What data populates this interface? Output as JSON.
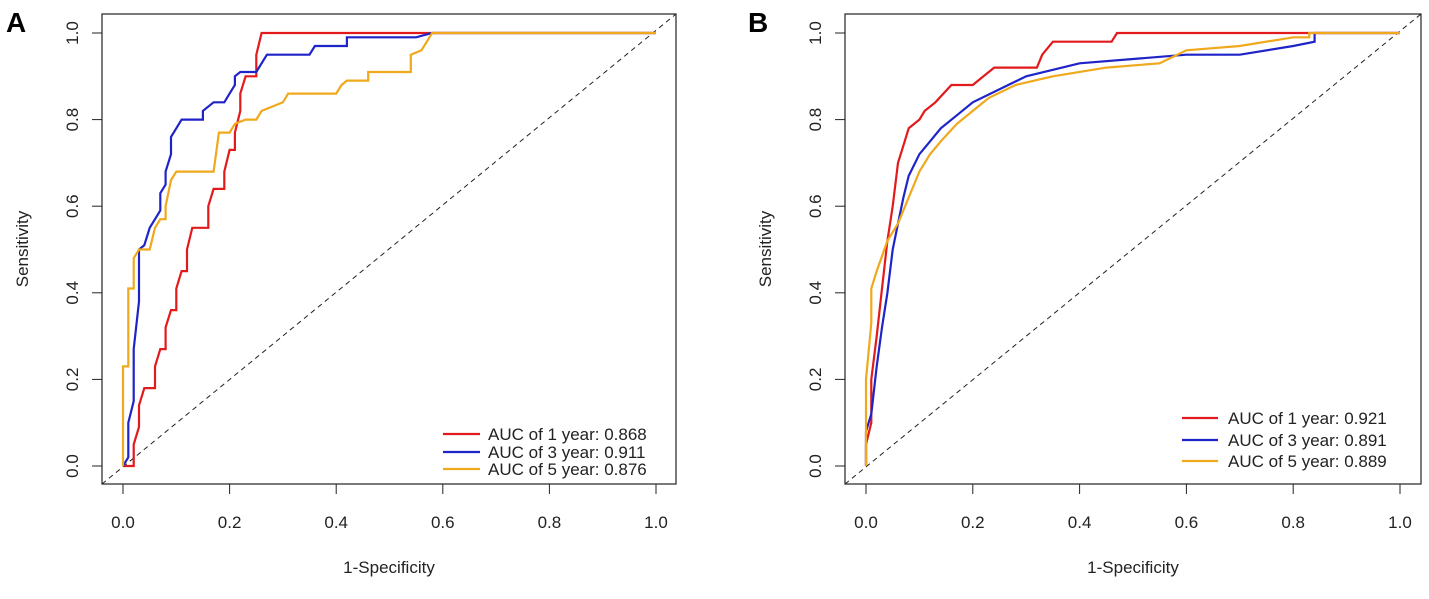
{
  "chart_data": [
    {
      "panel_label": "A",
      "type": "line",
      "xlabel": "1-Specificity",
      "ylabel": "Sensitivity",
      "xlim": [
        0,
        1
      ],
      "ylim": [
        0,
        1
      ],
      "xticks": [
        "0.0",
        "0.2",
        "0.4",
        "0.6",
        "0.8",
        "1.0"
      ],
      "yticks": [
        "0.0",
        "0.2",
        "0.4",
        "0.6",
        "0.8",
        "1.0"
      ],
      "reference_line": [
        [
          0,
          0
        ],
        [
          1,
          1
        ]
      ],
      "legend_position": "bottom-right",
      "series": [
        {
          "name": "AUC of 1 year: 0.868",
          "color": "#e31a1c",
          "points": [
            [
              0,
              0
            ],
            [
              0.02,
              0
            ],
            [
              0.02,
              0.05
            ],
            [
              0.03,
              0.09
            ],
            [
              0.03,
              0.14
            ],
            [
              0.04,
              0.18
            ],
            [
              0.06,
              0.18
            ],
            [
              0.06,
              0.23
            ],
            [
              0.07,
              0.27
            ],
            [
              0.08,
              0.27
            ],
            [
              0.08,
              0.32
            ],
            [
              0.09,
              0.36
            ],
            [
              0.1,
              0.36
            ],
            [
              0.1,
              0.41
            ],
            [
              0.11,
              0.45
            ],
            [
              0.12,
              0.45
            ],
            [
              0.12,
              0.5
            ],
            [
              0.13,
              0.55
            ],
            [
              0.15,
              0.55
            ],
            [
              0.16,
              0.55
            ],
            [
              0.16,
              0.6
            ],
            [
              0.17,
              0.64
            ],
            [
              0.19,
              0.64
            ],
            [
              0.19,
              0.68
            ],
            [
              0.2,
              0.73
            ],
            [
              0.21,
              0.73
            ],
            [
              0.21,
              0.77
            ],
            [
              0.22,
              0.82
            ],
            [
              0.22,
              0.86
            ],
            [
              0.23,
              0.9
            ],
            [
              0.25,
              0.9
            ],
            [
              0.25,
              0.95
            ],
            [
              0.26,
              1
            ],
            [
              0.42,
              1
            ],
            [
              0.55,
              1
            ],
            [
              0.58,
              1
            ],
            [
              1,
              1
            ]
          ]
        },
        {
          "name": "AUC of 3 year: 0.911",
          "color": "#1f24c8",
          "points": [
            [
              0,
              0
            ],
            [
              0.01,
              0.02
            ],
            [
              0.01,
              0.1
            ],
            [
              0.02,
              0.15
            ],
            [
              0.02,
              0.2
            ],
            [
              0.02,
              0.27
            ],
            [
              0.03,
              0.38
            ],
            [
              0.03,
              0.45
            ],
            [
              0.03,
              0.5
            ],
            [
              0.04,
              0.51
            ],
            [
              0.05,
              0.55
            ],
            [
              0.06,
              0.57
            ],
            [
              0.07,
              0.59
            ],
            [
              0.07,
              0.63
            ],
            [
              0.08,
              0.65
            ],
            [
              0.08,
              0.68
            ],
            [
              0.09,
              0.72
            ],
            [
              0.09,
              0.76
            ],
            [
              0.1,
              0.78
            ],
            [
              0.11,
              0.8
            ],
            [
              0.15,
              0.8
            ],
            [
              0.15,
              0.82
            ],
            [
              0.17,
              0.84
            ],
            [
              0.19,
              0.84
            ],
            [
              0.2,
              0.86
            ],
            [
              0.21,
              0.88
            ],
            [
              0.21,
              0.9
            ],
            [
              0.22,
              0.91
            ],
            [
              0.25,
              0.91
            ],
            [
              0.26,
              0.93
            ],
            [
              0.27,
              0.95
            ],
            [
              0.35,
              0.95
            ],
            [
              0.36,
              0.97
            ],
            [
              0.42,
              0.97
            ],
            [
              0.42,
              0.99
            ],
            [
              0.52,
              0.99
            ],
            [
              0.55,
              0.99
            ],
            [
              0.58,
              1
            ],
            [
              1,
              1
            ]
          ]
        },
        {
          "name": "AUC of 5 year: 0.876",
          "color": "#f0a81c",
          "points": [
            [
              0,
              0
            ],
            [
              0,
              0.23
            ],
            [
              0.01,
              0.23
            ],
            [
              0.01,
              0.41
            ],
            [
              0.02,
              0.41
            ],
            [
              0.02,
              0.48
            ],
            [
              0.03,
              0.5
            ],
            [
              0.05,
              0.5
            ],
            [
              0.06,
              0.55
            ],
            [
              0.07,
              0.57
            ],
            [
              0.08,
              0.57
            ],
            [
              0.08,
              0.6
            ],
            [
              0.09,
              0.66
            ],
            [
              0.1,
              0.68
            ],
            [
              0.17,
              0.68
            ],
            [
              0.18,
              0.77
            ],
            [
              0.2,
              0.77
            ],
            [
              0.21,
              0.79
            ],
            [
              0.23,
              0.8
            ],
            [
              0.25,
              0.8
            ],
            [
              0.26,
              0.82
            ],
            [
              0.28,
              0.83
            ],
            [
              0.3,
              0.84
            ],
            [
              0.31,
              0.86
            ],
            [
              0.4,
              0.86
            ],
            [
              0.41,
              0.88
            ],
            [
              0.42,
              0.89
            ],
            [
              0.46,
              0.89
            ],
            [
              0.46,
              0.91
            ],
            [
              0.54,
              0.91
            ],
            [
              0.54,
              0.95
            ],
            [
              0.56,
              0.96
            ],
            [
              0.57,
              0.98
            ],
            [
              0.58,
              1
            ],
            [
              1,
              1
            ]
          ]
        }
      ]
    },
    {
      "panel_label": "B",
      "type": "line",
      "xlabel": "1-Specificity",
      "ylabel": "Sensitivity",
      "xlim": [
        0,
        1
      ],
      "ylim": [
        0,
        1
      ],
      "xticks": [
        "0.0",
        "0.2",
        "0.4",
        "0.6",
        "0.8",
        "1.0"
      ],
      "yticks": [
        "0.0",
        "0.2",
        "0.4",
        "0.6",
        "0.8",
        "1.0"
      ],
      "reference_line": [
        [
          0,
          0
        ],
        [
          1,
          1
        ]
      ],
      "legend_position": "bottom-right",
      "series": [
        {
          "name": "AUC of 1 year: 0.921",
          "color": "#e31a1c",
          "points": [
            [
              0,
              0
            ],
            [
              0,
              0.05
            ],
            [
              0.01,
              0.1
            ],
            [
              0.01,
              0.2
            ],
            [
              0.02,
              0.3
            ],
            [
              0.03,
              0.41
            ],
            [
              0.04,
              0.52
            ],
            [
              0.05,
              0.6
            ],
            [
              0.06,
              0.7
            ],
            [
              0.07,
              0.74
            ],
            [
              0.08,
              0.78
            ],
            [
              0.1,
              0.8
            ],
            [
              0.11,
              0.82
            ],
            [
              0.13,
              0.84
            ],
            [
              0.16,
              0.88
            ],
            [
              0.2,
              0.88
            ],
            [
              0.21,
              0.89
            ],
            [
              0.24,
              0.92
            ],
            [
              0.32,
              0.92
            ],
            [
              0.33,
              0.95
            ],
            [
              0.35,
              0.98
            ],
            [
              0.46,
              0.98
            ],
            [
              0.47,
              1
            ],
            [
              0.84,
              1
            ],
            [
              1,
              1
            ]
          ]
        },
        {
          "name": "AUC of 3 year: 0.891",
          "color": "#1f24c8",
          "points": [
            [
              0,
              0
            ],
            [
              0,
              0.08
            ],
            [
              0.01,
              0.12
            ],
            [
              0.02,
              0.23
            ],
            [
              0.03,
              0.32
            ],
            [
              0.04,
              0.4
            ],
            [
              0.05,
              0.5
            ],
            [
              0.06,
              0.56
            ],
            [
              0.07,
              0.62
            ],
            [
              0.08,
              0.67
            ],
            [
              0.1,
              0.72
            ],
            [
              0.12,
              0.75
            ],
            [
              0.14,
              0.78
            ],
            [
              0.17,
              0.81
            ],
            [
              0.2,
              0.84
            ],
            [
              0.25,
              0.87
            ],
            [
              0.3,
              0.9
            ],
            [
              0.4,
              0.93
            ],
            [
              0.5,
              0.94
            ],
            [
              0.6,
              0.95
            ],
            [
              0.7,
              0.95
            ],
            [
              0.8,
              0.97
            ],
            [
              0.84,
              0.98
            ],
            [
              0.84,
              1
            ],
            [
              1,
              1
            ]
          ]
        },
        {
          "name": "AUC of 5 year: 0.889",
          "color": "#f0a81c",
          "points": [
            [
              0,
              0
            ],
            [
              0,
              0.2
            ],
            [
              0.01,
              0.33
            ],
            [
              0.01,
              0.41
            ],
            [
              0.02,
              0.45
            ],
            [
              0.04,
              0.52
            ],
            [
              0.06,
              0.56
            ],
            [
              0.08,
              0.62
            ],
            [
              0.1,
              0.68
            ],
            [
              0.12,
              0.72
            ],
            [
              0.14,
              0.75
            ],
            [
              0.17,
              0.79
            ],
            [
              0.2,
              0.82
            ],
            [
              0.23,
              0.85
            ],
            [
              0.28,
              0.88
            ],
            [
              0.35,
              0.9
            ],
            [
              0.45,
              0.92
            ],
            [
              0.55,
              0.93
            ],
            [
              0.6,
              0.96
            ],
            [
              0.7,
              0.97
            ],
            [
              0.8,
              0.99
            ],
            [
              0.83,
              0.99
            ],
            [
              0.83,
              1
            ],
            [
              1,
              1
            ]
          ]
        }
      ]
    }
  ]
}
